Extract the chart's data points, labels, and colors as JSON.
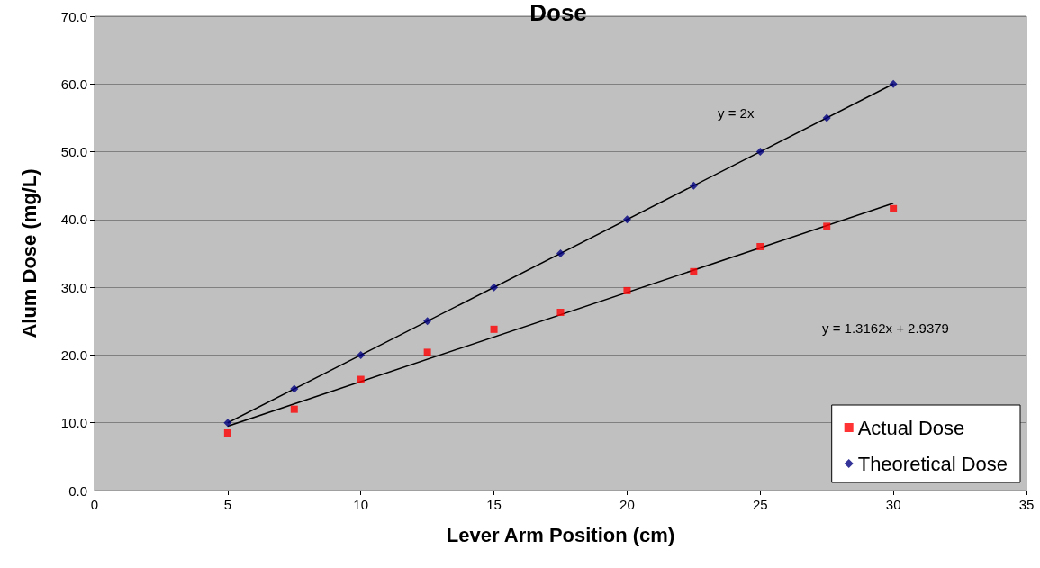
{
  "chart_data": {
    "type": "scatter",
    "title": "Dose",
    "xlabel": "Lever Arm Position (cm)",
    "ylabel": "Alum Dose (mg/L)",
    "xlim": [
      0,
      35
    ],
    "xticks": [
      0,
      5,
      10,
      15,
      20,
      25,
      30,
      35
    ],
    "ylim": [
      0,
      70
    ],
    "yticks": [
      {
        "value": 0,
        "label": "0.0"
      },
      {
        "value": 10,
        "label": "10.0"
      },
      {
        "value": 20,
        "label": "20.0"
      },
      {
        "value": 30,
        "label": "30.0"
      },
      {
        "value": 40,
        "label": "40.0"
      },
      {
        "value": 50,
        "label": "50.0"
      },
      {
        "value": 60,
        "label": "60.0"
      },
      {
        "value": 70,
        "label": "70.0"
      }
    ],
    "grid": "y",
    "legend": "bottom right",
    "series": [
      {
        "name": "Actual Dose",
        "color": "#ff0000",
        "marker": "square",
        "x": [
          5,
          7.5,
          10,
          12.5,
          15,
          17.5,
          20,
          22.5,
          25,
          27.5,
          30
        ],
        "values": [
          8.5,
          12.0,
          16.4,
          20.4,
          23.8,
          26.3,
          29.5,
          32.3,
          36.0,
          39.0,
          41.6
        ]
      },
      {
        "name": "Theoretical Dose",
        "color": "#000080",
        "marker": "diamond",
        "x": [
          5,
          7.5,
          10,
          12.5,
          15,
          17.5,
          20,
          22.5,
          25,
          27.5,
          30
        ],
        "values": [
          10,
          15,
          20,
          25,
          30,
          35,
          40,
          45,
          50,
          55,
          60
        ]
      },
      {
        "type": "line",
        "color": "#000000",
        "marker": "none",
        "x": [
          5,
          30
        ],
        "values": [
          10,
          60
        ]
      },
      {
        "type": "line",
        "color": "#000000",
        "marker": "none",
        "x": [
          5,
          30
        ],
        "values": [
          9.5,
          42.4
        ]
      }
    ],
    "annotations": [
      "y = 2x",
      "y = 1.3162x + 2.9379"
    ]
  }
}
